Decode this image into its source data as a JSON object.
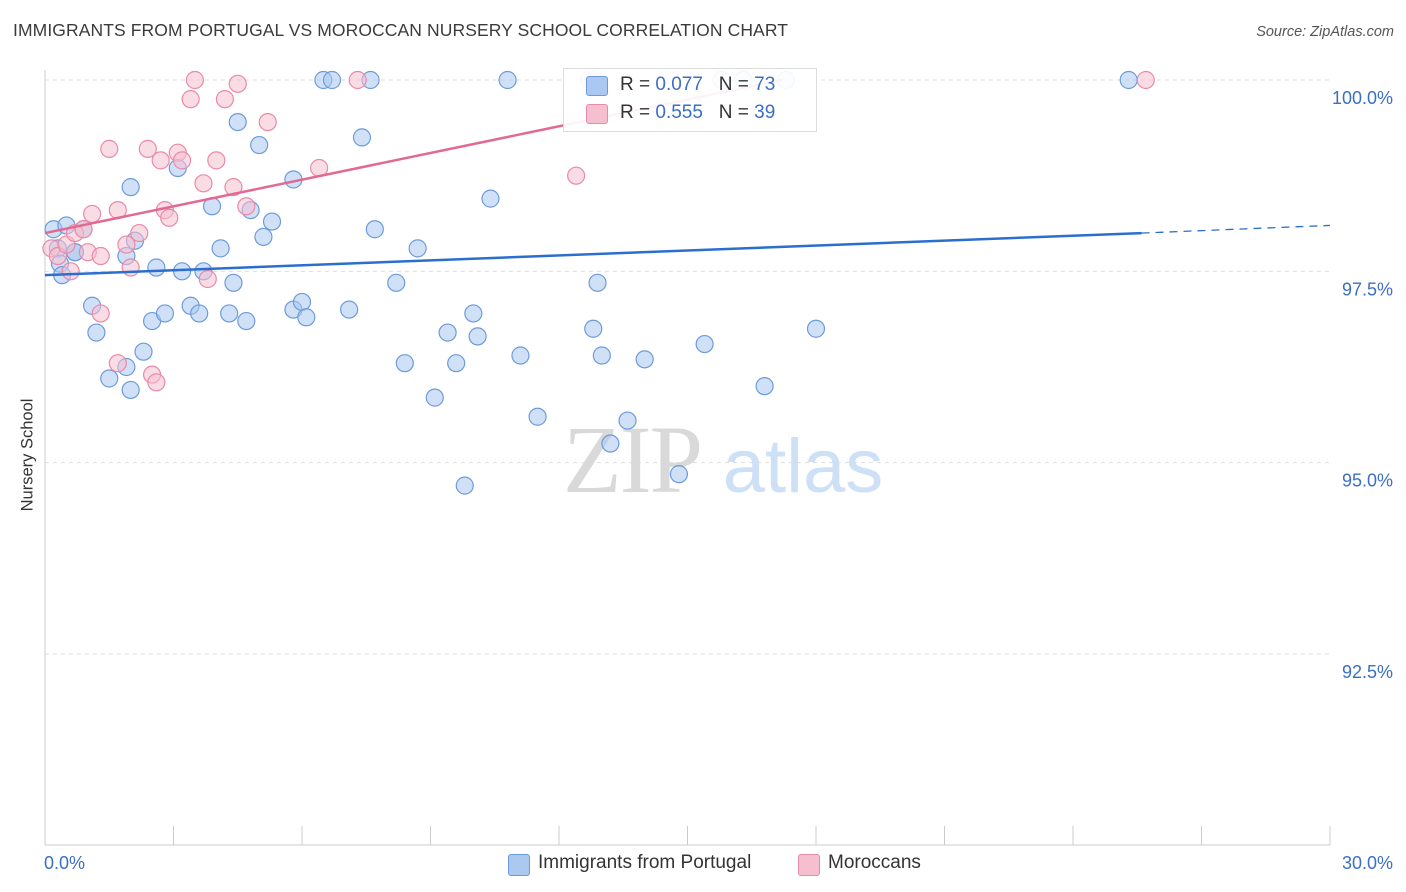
{
  "title": "IMMIGRANTS FROM PORTUGAL VS MOROCCAN NURSERY SCHOOL CORRELATION CHART",
  "source": "Source: ZipAtlas.com",
  "watermark": {
    "zip": "ZIP",
    "atlas": "atlas"
  },
  "legend": {
    "rows": [
      {
        "r_label": "R = ",
        "r_value": "0.077",
        "n_label": "N = ",
        "n_value": "73"
      },
      {
        "r_label": "R = ",
        "r_value": "0.555",
        "n_label": "N = ",
        "n_value": "39"
      }
    ]
  },
  "colors": {
    "blue_fill": "#aac8f0",
    "blue_stroke": "#6c9bdc",
    "blue_line": "#2b6fce",
    "pink_fill": "#f6bfd0",
    "pink_stroke": "#e98aa8",
    "pink_line": "#e26a92",
    "tick_label": "#3a6fc4",
    "grid": "#dddddd"
  },
  "chart_data": {
    "type": "scatter",
    "title": "IMMIGRANTS FROM PORTUGAL VS MOROCCAN NURSERY SCHOOL CORRELATION CHART",
    "xlabel": "",
    "ylabel": "Nursery School",
    "xlim": [
      0,
      30
    ],
    "ylim": [
      90.2,
      100.45
    ],
    "x_tick_labels": [
      "0.0%",
      "30.0%"
    ],
    "y_ticks": [
      92.5,
      95.0,
      97.5,
      100.0
    ],
    "y_tick_labels": [
      "92.5%",
      "95.0%",
      "97.5%",
      "100.0%"
    ],
    "grid": true,
    "legend_position": "bottom",
    "series": [
      {
        "name": "Immigrants from Portugal",
        "color": "#aac8f0",
        "trend": {
          "x0": 0,
          "y0": 97.45,
          "x1": 25.6,
          "y1": 98.0,
          "dashed_to_x": 30,
          "dashed_to_y": 98.1
        },
        "points": [
          [
            0.2,
            98.05
          ],
          [
            0.3,
            97.8
          ],
          [
            0.35,
            97.6
          ],
          [
            0.5,
            98.1
          ],
          [
            0.7,
            97.75
          ],
          [
            0.9,
            98.05
          ],
          [
            0.7,
            97.75
          ],
          [
            0.4,
            97.45
          ],
          [
            1.1,
            97.05
          ],
          [
            1.2,
            96.7
          ],
          [
            1.5,
            96.1
          ],
          [
            1.9,
            97.7
          ],
          [
            2.0,
            98.6
          ],
          [
            2.1,
            97.9
          ],
          [
            1.9,
            96.25
          ],
          [
            2.0,
            95.95
          ],
          [
            2.3,
            96.45
          ],
          [
            2.5,
            96.85
          ],
          [
            2.6,
            97.55
          ],
          [
            2.8,
            96.95
          ],
          [
            3.1,
            98.85
          ],
          [
            3.2,
            97.5
          ],
          [
            3.4,
            97.05
          ],
          [
            3.6,
            96.95
          ],
          [
            3.7,
            97.5
          ],
          [
            3.9,
            98.35
          ],
          [
            4.1,
            97.8
          ],
          [
            4.3,
            96.95
          ],
          [
            4.4,
            97.35
          ],
          [
            4.5,
            99.45
          ],
          [
            4.7,
            96.85
          ],
          [
            4.8,
            98.3
          ],
          [
            5.0,
            99.15
          ],
          [
            5.1,
            97.95
          ],
          [
            5.3,
            98.15
          ],
          [
            5.8,
            97.0
          ],
          [
            5.8,
            98.7
          ],
          [
            6.0,
            97.1
          ],
          [
            6.1,
            96.9
          ],
          [
            6.5,
            100.0
          ],
          [
            6.7,
            100.0
          ],
          [
            7.1,
            97.0
          ],
          [
            7.4,
            99.25
          ],
          [
            7.6,
            100.0
          ],
          [
            7.7,
            98.05
          ],
          [
            8.2,
            97.35
          ],
          [
            8.4,
            96.3
          ],
          [
            8.7,
            97.8
          ],
          [
            9.1,
            95.85
          ],
          [
            9.4,
            96.7
          ],
          [
            9.6,
            96.3
          ],
          [
            9.8,
            94.7
          ],
          [
            10.0,
            96.95
          ],
          [
            10.1,
            96.65
          ],
          [
            10.4,
            98.45
          ],
          [
            10.8,
            100.0
          ],
          [
            11.1,
            96.4
          ],
          [
            11.5,
            95.6
          ],
          [
            12.8,
            96.75
          ],
          [
            12.8,
            100.0
          ],
          [
            12.9,
            97.35
          ],
          [
            13.0,
            96.4
          ],
          [
            13.2,
            95.25
          ],
          [
            13.6,
            95.55
          ],
          [
            14.0,
            96.35
          ],
          [
            14.8,
            94.85
          ],
          [
            15.4,
            96.55
          ],
          [
            15.8,
            100.0
          ],
          [
            16.3,
            100.0
          ],
          [
            16.8,
            96.0
          ],
          [
            17.3,
            100.0
          ],
          [
            18.0,
            96.75
          ],
          [
            25.3,
            100.0
          ]
        ]
      },
      {
        "name": "Moroccans",
        "color": "#f6bfd0",
        "trend": {
          "x0": 0,
          "y0": 98.0,
          "x1": 17.2,
          "y1": 100.0
        },
        "points": [
          [
            0.15,
            97.8
          ],
          [
            0.3,
            97.7
          ],
          [
            0.5,
            97.85
          ],
          [
            0.6,
            97.5
          ],
          [
            0.7,
            98.0
          ],
          [
            0.9,
            98.05
          ],
          [
            1.0,
            97.75
          ],
          [
            1.1,
            98.25
          ],
          [
            1.3,
            97.7
          ],
          [
            1.3,
            96.95
          ],
          [
            1.5,
            99.1
          ],
          [
            1.7,
            98.3
          ],
          [
            1.7,
            96.3
          ],
          [
            1.9,
            97.85
          ],
          [
            2.0,
            97.55
          ],
          [
            2.2,
            98.0
          ],
          [
            2.4,
            99.1
          ],
          [
            2.5,
            96.15
          ],
          [
            2.6,
            96.05
          ],
          [
            2.7,
            98.95
          ],
          [
            2.8,
            98.3
          ],
          [
            2.9,
            98.2
          ],
          [
            3.1,
            99.05
          ],
          [
            3.2,
            98.95
          ],
          [
            3.4,
            99.75
          ],
          [
            3.5,
            100.0
          ],
          [
            3.7,
            98.65
          ],
          [
            3.8,
            97.4
          ],
          [
            4.0,
            98.95
          ],
          [
            4.2,
            99.75
          ],
          [
            4.4,
            98.6
          ],
          [
            4.5,
            99.95
          ],
          [
            4.7,
            98.35
          ],
          [
            5.2,
            99.45
          ],
          [
            6.4,
            98.85
          ],
          [
            7.3,
            100.0
          ],
          [
            12.4,
            98.75
          ],
          [
            12.7,
            100.0
          ],
          [
            25.7,
            100.0
          ]
        ]
      }
    ]
  }
}
